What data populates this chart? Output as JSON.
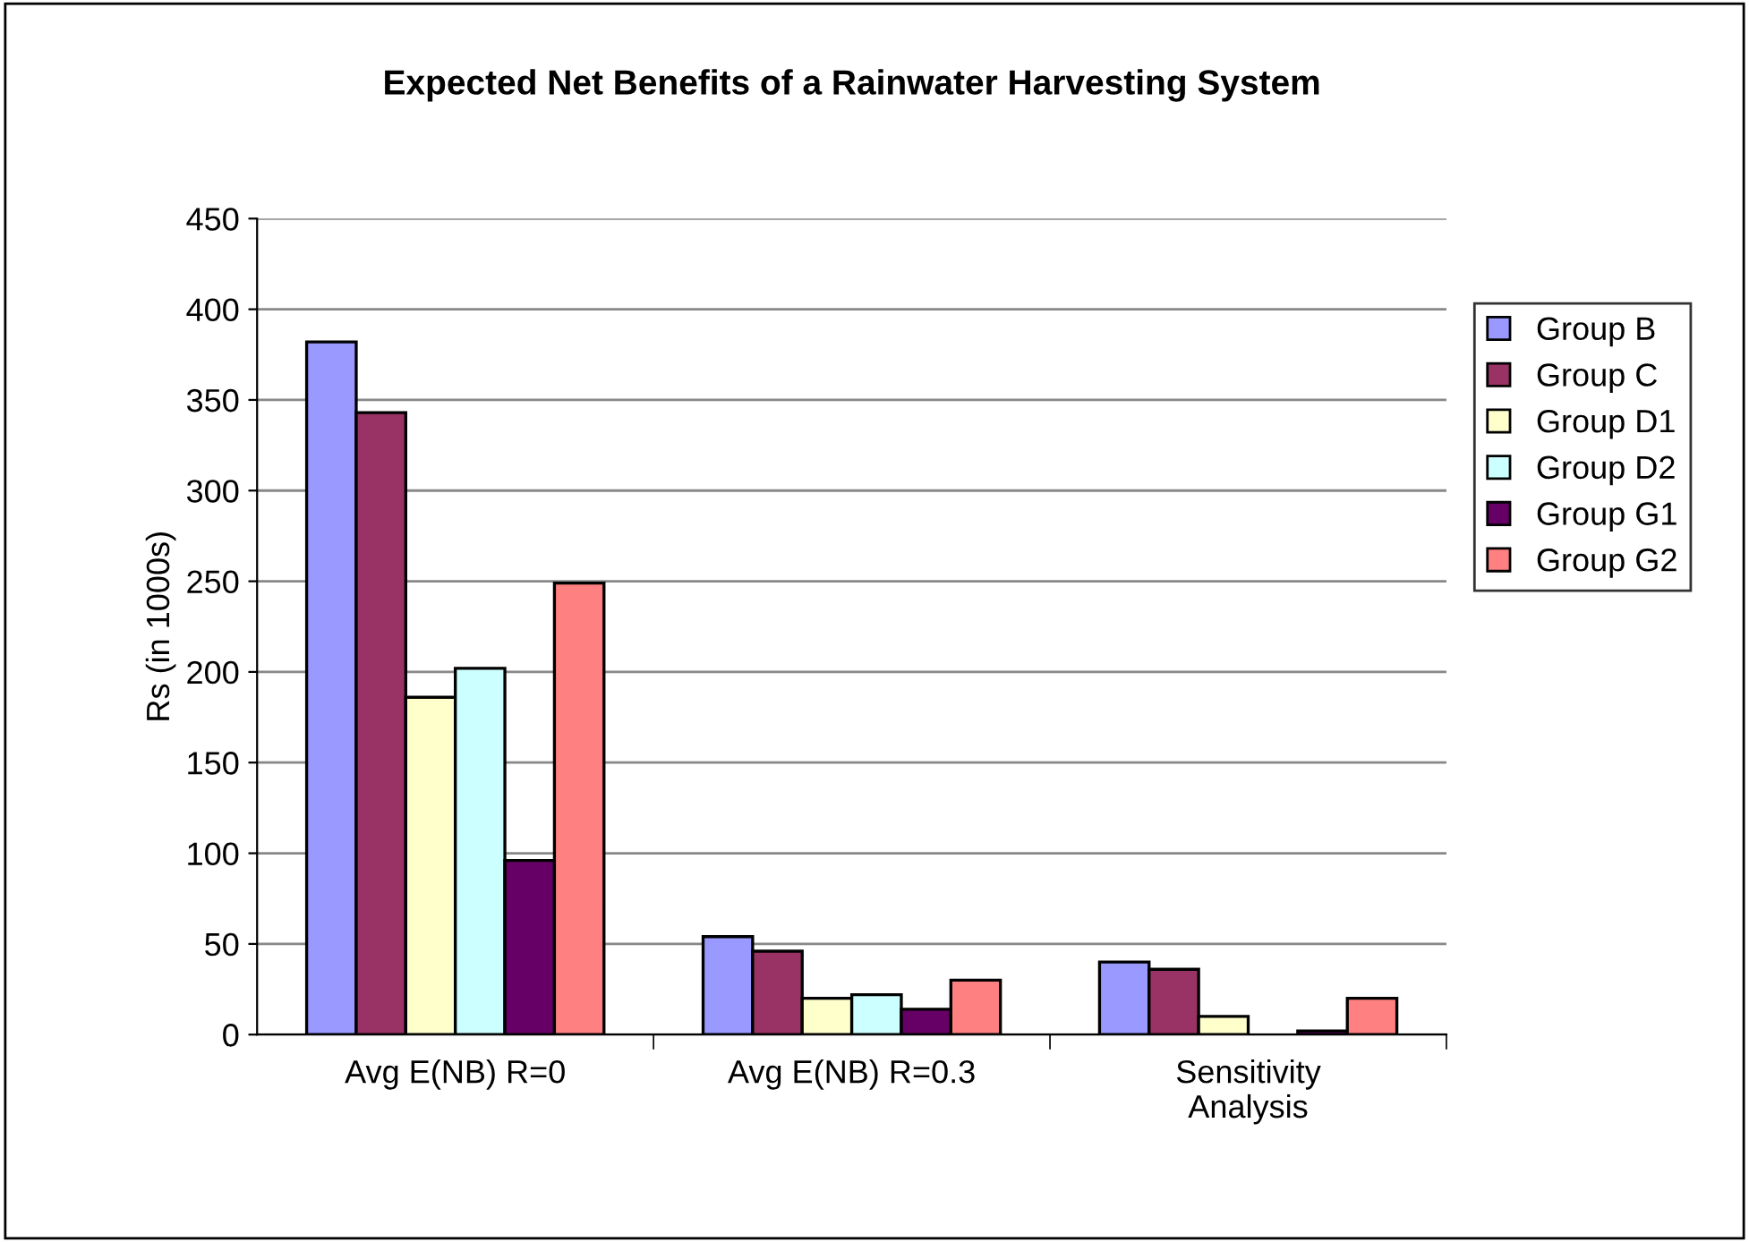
{
  "chart_data": {
    "type": "bar",
    "title": "Expected Net Benefits of a Rainwater Harvesting System",
    "ylabel": "Rs (in 1000s)",
    "categories": [
      "Avg E(NB) R=0",
      "Avg E(NB) R=0.3",
      "Sensitivity\nAnalysis"
    ],
    "series": [
      {
        "name": "Group B",
        "color": "#9999ff",
        "values": [
          382,
          54,
          40
        ]
      },
      {
        "name": "Group C",
        "color": "#993366",
        "values": [
          343,
          46,
          36
        ]
      },
      {
        "name": "Group D1",
        "color": "#ffffcc",
        "values": [
          186,
          20,
          10
        ]
      },
      {
        "name": "Group D2",
        "color": "#ccffff",
        "values": [
          202,
          22,
          null
        ]
      },
      {
        "name": "Group G1",
        "color": "#660066",
        "values": [
          96,
          14,
          2
        ]
      },
      {
        "name": "Group G2",
        "color": "#ff8080",
        "values": [
          249,
          30,
          20
        ]
      }
    ],
    "ylim": [
      0,
      450
    ],
    "yticks": [
      0,
      50,
      100,
      150,
      200,
      250,
      300,
      350,
      400,
      450
    ],
    "grid": "y",
    "legend": "right"
  }
}
